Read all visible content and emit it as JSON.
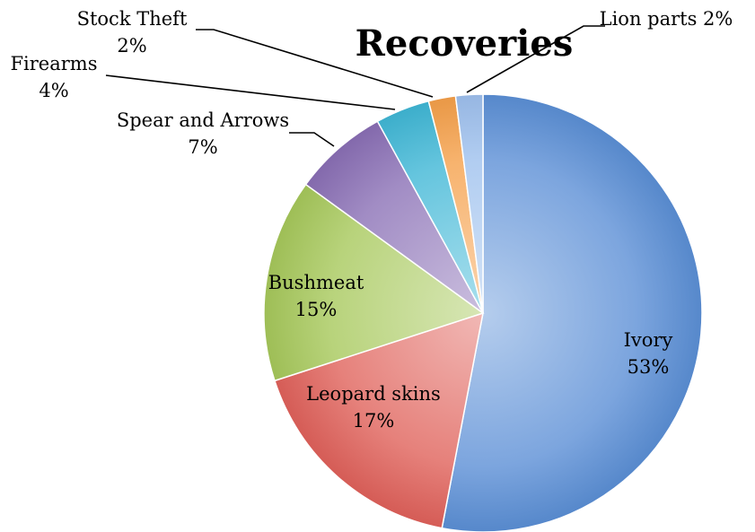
{
  "chart_data": {
    "type": "pie",
    "title": "Recoveries",
    "categories": [
      "Ivory",
      "Leopard skins",
      "Bushmeat",
      "Spear and Arrows",
      "Firearms",
      "Stock Theft",
      "Lion parts"
    ],
    "values": [
      53,
      17,
      15,
      7,
      4,
      2,
      2
    ],
    "percent_labels": [
      "53%",
      "17%",
      "15%",
      "7%",
      "4%",
      "2%",
      "2%"
    ],
    "colors": [
      "#5b8fd6",
      "#e0615a",
      "#a6c85a",
      "#8a6fb5",
      "#3fb7d6",
      "#f5a04a",
      "#9ec0ee"
    ],
    "start_position": "12 o'clock",
    "direction": "clockwise",
    "legend": "none (category labels on/next to slices)"
  }
}
